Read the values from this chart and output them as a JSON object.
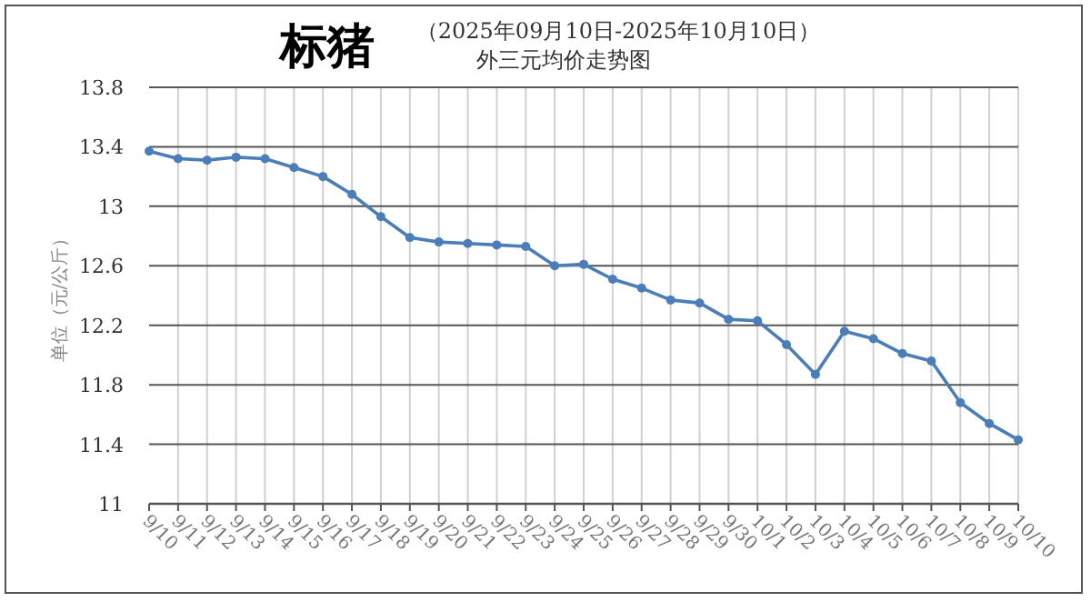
{
  "chart_data": {
    "type": "line",
    "title": "标猪",
    "subtitle": "（2025年09月10日-2025年10月10日）",
    "annotations": [
      "外三元均价走势图"
    ],
    "ylabel": "单位（元/公斤）",
    "categories": [
      "9/10",
      "9/11",
      "9/12",
      "9/13",
      "9/14",
      "9/15",
      "9/16",
      "9/17",
      "9/18",
      "9/19",
      "9/20",
      "9/21",
      "9/22",
      "9/23",
      "9/24",
      "9/25",
      "9/26",
      "9/27",
      "9/28",
      "9/29",
      "9/30",
      "10/1",
      "10/2",
      "10/3",
      "10/4",
      "10/5",
      "10/6",
      "10/7",
      "10/8",
      "10/9",
      "10/10"
    ],
    "series": [
      {
        "color": "#4a7ebb",
        "values": [
          13.37,
          13.32,
          13.31,
          13.33,
          13.32,
          13.26,
          13.2,
          13.08,
          12.93,
          12.79,
          12.76,
          12.75,
          12.74,
          12.73,
          12.6,
          12.61,
          12.51,
          12.45,
          12.37,
          12.35,
          12.24,
          12.23,
          12.07,
          11.87,
          12.16,
          12.11,
          12.01,
          11.96,
          11.68,
          11.54,
          11.43
        ]
      }
    ],
    "ylim": [
      11,
      13.8
    ],
    "yticks": [
      11,
      11.4,
      11.8,
      12.2,
      12.6,
      13,
      13.4,
      13.8
    ],
    "grid": true,
    "marker": "circle",
    "line_style": "solid"
  }
}
